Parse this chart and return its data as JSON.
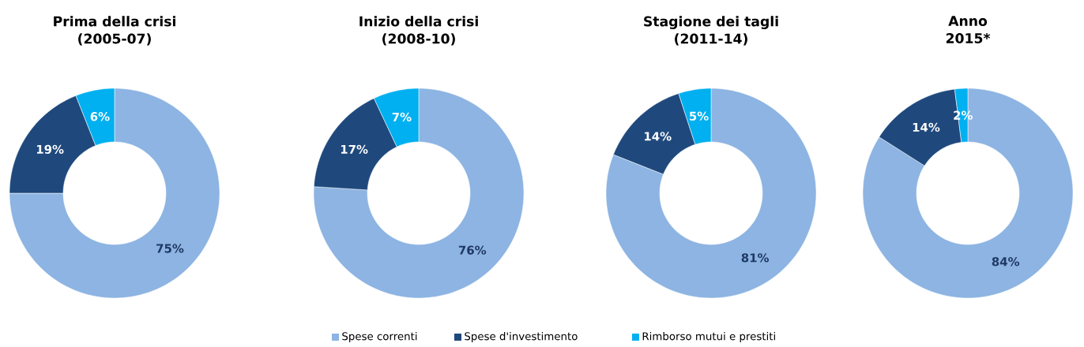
{
  "chart_data": [
    {
      "type": "donut",
      "title": "Prima della crisi",
      "subtitle": "(2005-07)",
      "categories": [
        "Spese correnti",
        "Spese d'investimento",
        "Rimborso mutui e prestiti"
      ],
      "values": [
        75,
        19,
        6
      ],
      "value_labels": [
        "75%",
        "19%",
        "6%"
      ],
      "colors": [
        "#8db4e2",
        "#1f497d",
        "#00b0f0"
      ],
      "legend": "bottom"
    },
    {
      "type": "donut",
      "title": "Inizio della crisi",
      "subtitle": "(2008-10)",
      "values": [
        76,
        17,
        7
      ],
      "value_labels": [
        "76%",
        "17%",
        "7%"
      ],
      "colors": [
        "#8db4e2",
        "#1f497d",
        "#00b0f0"
      ]
    },
    {
      "type": "donut",
      "title": "Stagione dei tagli",
      "subtitle": "(2011-14)",
      "values": [
        81,
        14,
        5
      ],
      "value_labels": [
        "81%",
        "14%",
        "5%"
      ],
      "colors": [
        "#8db4e2",
        "#1f497d",
        "#00b0f0"
      ]
    },
    {
      "type": "donut",
      "title": "Anno",
      "subtitle": "2015*",
      "values": [
        84,
        14,
        2
      ],
      "value_labels": [
        "84%",
        "14%",
        "2%"
      ],
      "colors": [
        "#8db4e2",
        "#1f497d",
        "#00b0f0"
      ]
    }
  ]
}
